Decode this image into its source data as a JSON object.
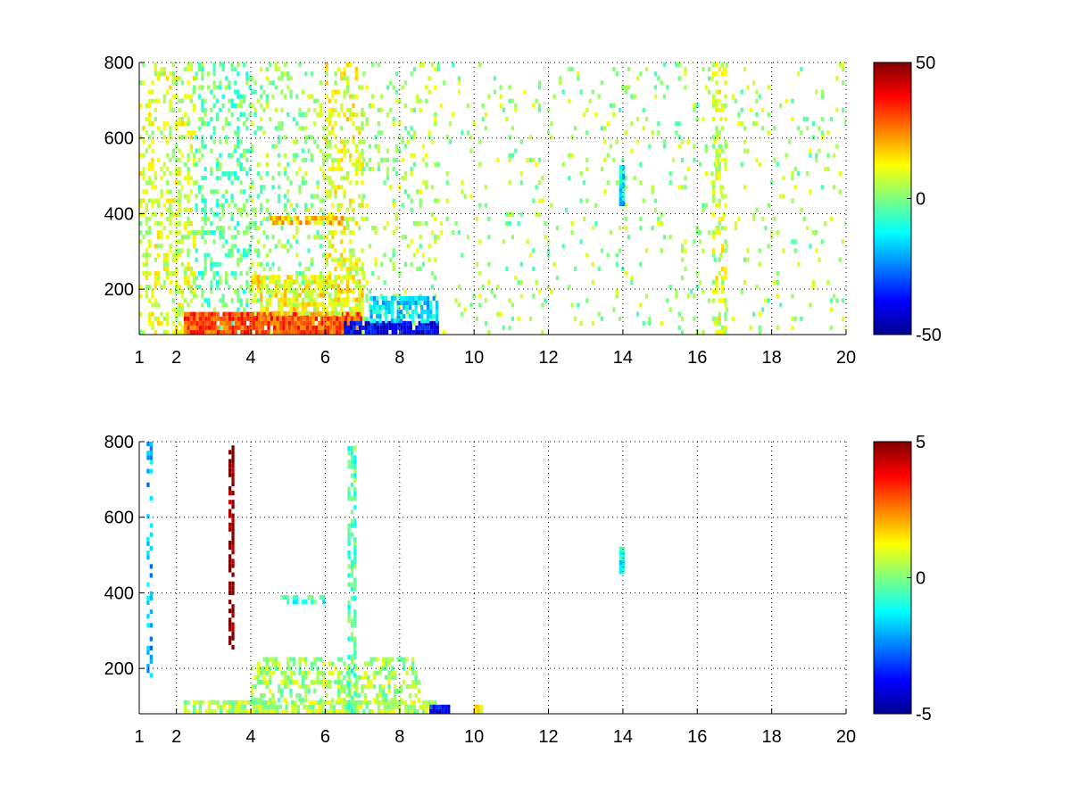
{
  "chart_data": [
    {
      "type": "heatmap",
      "title": "",
      "xlabel": "",
      "ylabel": "",
      "xlim": [
        1,
        20
      ],
      "ylim": [
        80,
        800
      ],
      "x_ticks": [
        1,
        2,
        4,
        6,
        8,
        10,
        12,
        14,
        16,
        18,
        20
      ],
      "y_ticks": [
        200,
        400,
        600,
        800
      ],
      "grid": true,
      "colorscale": "jet",
      "clim": [
        -50,
        50
      ],
      "colorbar_ticks": [
        50,
        0,
        -50
      ],
      "colorbar_labels": [
        "50",
        "0",
        "-50"
      ],
      "regions": [
        {
          "x": [
            1.0,
            2.5
          ],
          "y": [
            80,
            800
          ],
          "value": 8,
          "density": 0.35
        },
        {
          "x": [
            2.5,
            4.0
          ],
          "y": [
            80,
            800
          ],
          "value": -3,
          "density": 0.28
        },
        {
          "x": [
            4.0,
            6.0
          ],
          "y": [
            80,
            800
          ],
          "value": 2,
          "density": 0.22
        },
        {
          "x": [
            6.0,
            7.0
          ],
          "y": [
            80,
            800
          ],
          "value": 10,
          "density": 0.35
        },
        {
          "x": [
            7.0,
            9.0
          ],
          "y": [
            80,
            800
          ],
          "value": 4,
          "density": 0.14
        },
        {
          "x": [
            9.0,
            20.0
          ],
          "y": [
            80,
            800
          ],
          "value": 3,
          "density": 0.07
        },
        {
          "x": [
            2.2,
            7.0
          ],
          "y": [
            80,
            130
          ],
          "value": 30,
          "density": 0.95
        },
        {
          "x": [
            6.5,
            9.0
          ],
          "y": [
            80,
            110
          ],
          "value": -40,
          "density": 0.9
        },
        {
          "x": [
            7.2,
            9.0
          ],
          "y": [
            110,
            180
          ],
          "value": -15,
          "density": 0.7
        },
        {
          "x": [
            4.0,
            7.0
          ],
          "y": [
            130,
            230
          ],
          "value": 12,
          "density": 0.6
        },
        {
          "x": [
            4.5,
            6.5
          ],
          "y": [
            370,
            390
          ],
          "value": 18,
          "density": 0.7
        },
        {
          "x": [
            13.9,
            14.0
          ],
          "y": [
            420,
            520
          ],
          "value": -15,
          "density": 1.0
        },
        {
          "x": [
            16.4,
            16.8
          ],
          "y": [
            80,
            800
          ],
          "value": 8,
          "density": 0.4
        }
      ]
    },
    {
      "type": "heatmap",
      "title": "",
      "xlabel": "",
      "ylabel": "",
      "xlim": [
        1,
        20
      ],
      "ylim": [
        80,
        800
      ],
      "x_ticks": [
        1,
        2,
        4,
        6,
        8,
        10,
        12,
        14,
        16,
        18,
        20
      ],
      "y_ticks": [
        200,
        400,
        600,
        800
      ],
      "grid": true,
      "colorscale": "jet",
      "clim": [
        -5,
        5
      ],
      "colorbar_ticks": [
        5,
        0,
        -5
      ],
      "colorbar_labels": [
        "5",
        "0",
        "-5"
      ],
      "regions": [
        {
          "x": [
            2.2,
            9.0
          ],
          "y": [
            80,
            110
          ],
          "value": 0.5,
          "density": 0.8
        },
        {
          "x": [
            4.0,
            8.5
          ],
          "y": [
            110,
            230
          ],
          "value": 0.3,
          "density": 0.45
        },
        {
          "x": [
            4.8,
            6.0
          ],
          "y": [
            370,
            390
          ],
          "value": -0.8,
          "density": 0.6
        },
        {
          "x": [
            6.6,
            6.8
          ],
          "y": [
            80,
            780
          ],
          "value": -0.5,
          "density": 0.6
        },
        {
          "x": [
            13.9,
            14.0
          ],
          "y": [
            450,
            520
          ],
          "value": -1.0,
          "density": 1.0
        },
        {
          "x": [
            1.2,
            1.3
          ],
          "y": [
            140,
            800
          ],
          "value": -2.0,
          "density": 0.4
        },
        {
          "x": [
            3.4,
            3.5
          ],
          "y": [
            250,
            780
          ],
          "value": 5.0,
          "density": 0.7
        },
        {
          "x": [
            8.8,
            9.3
          ],
          "y": [
            80,
            100
          ],
          "value": -3.5,
          "density": 0.8
        },
        {
          "x": [
            10.0,
            10.2
          ],
          "y": [
            80,
            100
          ],
          "value": 1.5,
          "density": 0.9
        }
      ]
    }
  ]
}
